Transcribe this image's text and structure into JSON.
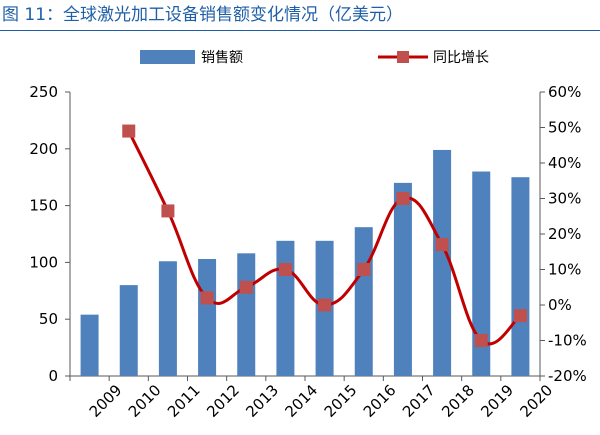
{
  "title": "图 11：全球激光加工设备销售额变化情况（亿美元）",
  "colors": {
    "title": "#1f5fa8",
    "bar": "#4f81bd",
    "line": "#c00000",
    "marker": "#c0504d",
    "axis": "#595959"
  },
  "chart_data": {
    "type": "bar",
    "title": "图 11：全球激光加工设备销售额变化情况（亿美元）",
    "categories": [
      "2009",
      "2010",
      "2011",
      "2012",
      "2013",
      "2014",
      "2015",
      "2016",
      "2017",
      "2018",
      "2019",
      "2020"
    ],
    "series": [
      {
        "name": "销售额",
        "type": "bar",
        "axis": "left",
        "values": [
          54,
          80,
          101,
          103,
          108,
          119,
          119,
          131,
          170,
          199,
          180,
          175
        ]
      },
      {
        "name": "同比增长",
        "type": "line",
        "axis": "right",
        "smooth": true,
        "marker": "square",
        "values": [
          null,
          49,
          26.5,
          2,
          5,
          10,
          0,
          10,
          30,
          17,
          -10,
          -3
        ]
      }
    ],
    "y_left": {
      "min": 0,
      "max": 250,
      "ticks": [
        "0",
        "50",
        "100",
        "150",
        "200",
        "250"
      ]
    },
    "y_right": {
      "min": -20,
      "max": 60,
      "ticks": [
        "-20%",
        "-10%",
        "0%",
        "10%",
        "20%",
        "30%",
        "40%",
        "50%",
        "60%"
      ]
    },
    "legend": {
      "position": "top",
      "items": [
        "销售额",
        "同比增长"
      ]
    },
    "grid": false
  }
}
